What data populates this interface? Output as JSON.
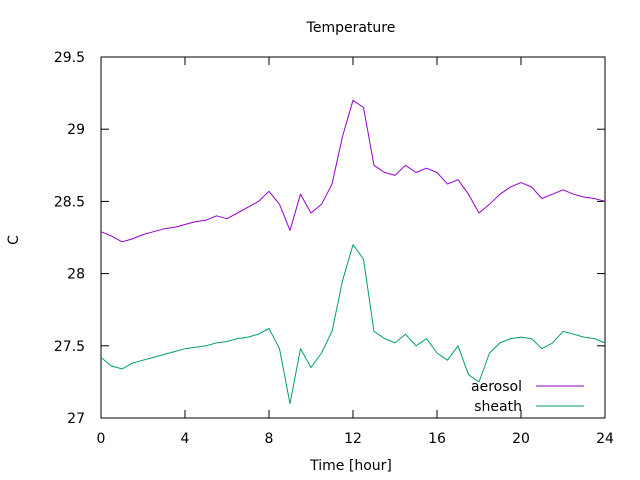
{
  "chart_data": {
    "type": "line",
    "title": "Temperature",
    "xlabel": "Time [hour]",
    "ylabel": "C",
    "xlim": [
      0,
      24
    ],
    "ylim": [
      27,
      29.5
    ],
    "xticks": [
      0,
      4,
      8,
      12,
      16,
      20,
      24
    ],
    "yticks": [
      27,
      27.5,
      28,
      28.5,
      29,
      29.5
    ],
    "ytick_labels": [
      "27",
      "27.5",
      "28",
      "28.5",
      "29",
      "29.5"
    ],
    "grid": false,
    "legend_position": "bottom-right",
    "x": [
      0,
      0.5,
      1,
      1.5,
      2,
      2.5,
      3,
      3.5,
      4,
      4.5,
      5,
      5.5,
      6,
      6.5,
      7,
      7.5,
      8,
      8.5,
      9,
      9.5,
      10,
      10.5,
      11,
      11.5,
      12,
      12.5,
      13,
      13.5,
      14,
      14.5,
      15,
      15.5,
      16,
      16.5,
      17,
      17.5,
      18,
      18.5,
      19,
      19.5,
      20,
      20.5,
      21,
      21.5,
      22,
      22.5,
      23,
      23.5,
      24
    ],
    "series": [
      {
        "name": "aerosol",
        "color": "#9400d3",
        "values": [
          28.29,
          28.26,
          28.22,
          28.24,
          28.27,
          28.29,
          28.31,
          28.32,
          28.34,
          28.36,
          28.37,
          28.4,
          28.38,
          28.42,
          28.46,
          28.5,
          28.57,
          28.48,
          28.3,
          28.55,
          28.42,
          28.48,
          28.62,
          28.95,
          29.2,
          29.15,
          28.75,
          28.7,
          28.68,
          28.75,
          28.7,
          28.73,
          28.7,
          28.62,
          28.65,
          28.55,
          28.42,
          28.48,
          28.55,
          28.6,
          28.63,
          28.6,
          28.52,
          28.55,
          28.58,
          28.55,
          28.53,
          28.52,
          28.5
        ]
      },
      {
        "name": "sheath",
        "color": "#009e73",
        "values": [
          27.42,
          27.36,
          27.34,
          27.38,
          27.4,
          27.42,
          27.44,
          27.46,
          27.48,
          27.49,
          27.5,
          27.52,
          27.53,
          27.55,
          27.56,
          27.58,
          27.62,
          27.48,
          27.1,
          27.48,
          27.35,
          27.45,
          27.6,
          27.95,
          28.2,
          28.1,
          27.6,
          27.55,
          27.52,
          27.58,
          27.5,
          27.55,
          27.45,
          27.4,
          27.5,
          27.3,
          27.25,
          27.45,
          27.52,
          27.55,
          27.56,
          27.55,
          27.48,
          27.52,
          27.6,
          27.58,
          27.56,
          27.55,
          27.52
        ]
      }
    ]
  }
}
